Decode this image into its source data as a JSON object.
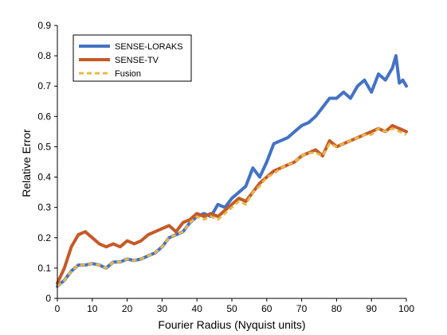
{
  "chart_data": {
    "type": "line",
    "xlabel": "Fourier Radius (Nyquist units)",
    "ylabel": "Relative Error",
    "xlim": [
      0,
      100
    ],
    "ylim": [
      0,
      0.9
    ],
    "xticks": [
      "0",
      "10",
      "20",
      "30",
      "40",
      "50",
      "60",
      "70",
      "80",
      "90",
      "100"
    ],
    "yticks": [
      "0",
      "0.1",
      "0.2",
      "0.3",
      "0.4",
      "0.5",
      "0.6",
      "0.7",
      "0.8",
      "0.9"
    ],
    "legend_position": "top-left",
    "grid": false,
    "series": [
      {
        "name": "SENSE-LORAKS",
        "color": "#4472c4",
        "style": "solid",
        "x": [
          0,
          2,
          4,
          6,
          8,
          10,
          12,
          14,
          16,
          18,
          20,
          22,
          24,
          26,
          28,
          30,
          32,
          34,
          36,
          38,
          40,
          42,
          44,
          46,
          48,
          50,
          52,
          54,
          56,
          58,
          60,
          62,
          64,
          66,
          68,
          70,
          72,
          74,
          76,
          78,
          80,
          82,
          84,
          86,
          88,
          90,
          92,
          94,
          96,
          97,
          98,
          99,
          100
        ],
        "y": [
          0.04,
          0.06,
          0.09,
          0.11,
          0.11,
          0.115,
          0.11,
          0.1,
          0.12,
          0.12,
          0.13,
          0.125,
          0.13,
          0.14,
          0.15,
          0.17,
          0.2,
          0.21,
          0.22,
          0.25,
          0.27,
          0.28,
          0.27,
          0.31,
          0.3,
          0.33,
          0.35,
          0.37,
          0.43,
          0.4,
          0.45,
          0.51,
          0.52,
          0.53,
          0.55,
          0.57,
          0.58,
          0.6,
          0.63,
          0.66,
          0.66,
          0.68,
          0.66,
          0.7,
          0.72,
          0.68,
          0.74,
          0.72,
          0.76,
          0.8,
          0.71,
          0.72,
          0.7
        ]
      },
      {
        "name": "SENSE-TV",
        "color": "#c55a28",
        "style": "solid",
        "x": [
          0,
          2,
          4,
          6,
          8,
          10,
          12,
          14,
          16,
          18,
          20,
          22,
          24,
          26,
          28,
          30,
          32,
          34,
          36,
          38,
          40,
          42,
          44,
          46,
          48,
          50,
          52,
          54,
          56,
          58,
          60,
          62,
          64,
          66,
          68,
          70,
          72,
          74,
          76,
          78,
          80,
          82,
          84,
          86,
          88,
          90,
          92,
          94,
          96,
          98,
          100
        ],
        "y": [
          0.05,
          0.1,
          0.17,
          0.21,
          0.22,
          0.2,
          0.18,
          0.17,
          0.18,
          0.17,
          0.19,
          0.18,
          0.19,
          0.21,
          0.22,
          0.23,
          0.24,
          0.22,
          0.25,
          0.26,
          0.28,
          0.27,
          0.28,
          0.27,
          0.29,
          0.31,
          0.33,
          0.32,
          0.35,
          0.38,
          0.4,
          0.42,
          0.43,
          0.44,
          0.45,
          0.47,
          0.48,
          0.49,
          0.47,
          0.52,
          0.5,
          0.51,
          0.52,
          0.53,
          0.54,
          0.55,
          0.56,
          0.55,
          0.57,
          0.56,
          0.55
        ]
      },
      {
        "name": "Fusion",
        "color": "#e8b84a",
        "style": "dashed",
        "x": [
          0,
          2,
          4,
          6,
          8,
          10,
          12,
          14,
          16,
          18,
          20,
          22,
          24,
          26,
          28,
          30,
          32,
          34,
          36,
          38,
          40,
          42,
          44,
          46,
          48,
          50,
          52,
          54,
          56,
          58,
          60,
          62,
          64,
          66,
          68,
          70,
          72,
          74,
          76,
          78,
          80,
          82,
          84,
          86,
          88,
          90,
          92,
          94,
          96,
          98,
          100
        ],
        "y": [
          0.04,
          0.06,
          0.09,
          0.11,
          0.11,
          0.115,
          0.11,
          0.1,
          0.12,
          0.12,
          0.13,
          0.125,
          0.13,
          0.14,
          0.15,
          0.17,
          0.2,
          0.21,
          0.22,
          0.25,
          0.27,
          0.26,
          0.27,
          0.26,
          0.28,
          0.3,
          0.32,
          0.31,
          0.35,
          0.37,
          0.4,
          0.41,
          0.43,
          0.44,
          0.45,
          0.47,
          0.48,
          0.48,
          0.47,
          0.51,
          0.5,
          0.51,
          0.52,
          0.53,
          0.54,
          0.54,
          0.56,
          0.55,
          0.56,
          0.55,
          0.54
        ]
      }
    ]
  }
}
